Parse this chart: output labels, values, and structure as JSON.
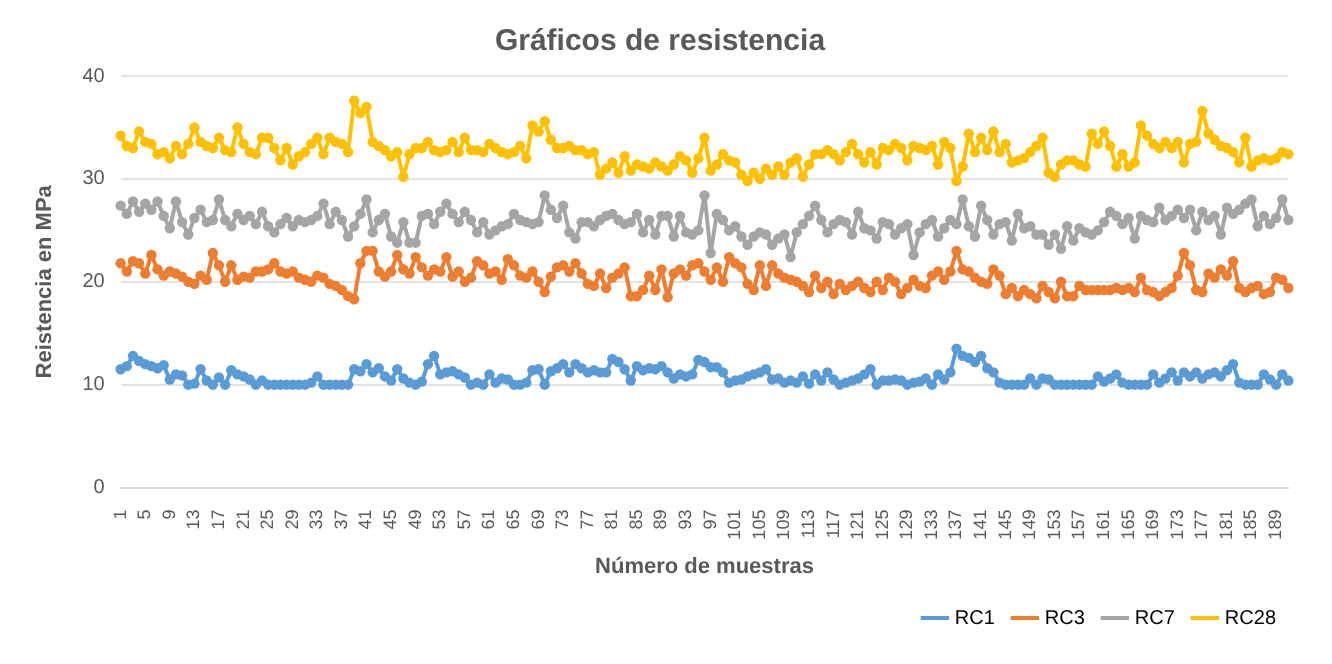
{
  "chart_data": {
    "type": "line",
    "title": "Gráficos de resistencia",
    "xlabel": "Número de muestras",
    "ylabel": "Reistencia en MPa",
    "categories": [
      "1",
      null,
      null,
      null,
      "5",
      null,
      null,
      null,
      "9",
      null,
      null,
      null,
      "13",
      null,
      null,
      null,
      "17",
      null,
      null,
      null,
      "21",
      null,
      null,
      null,
      "25",
      null,
      null,
      null,
      "29",
      null,
      null,
      null,
      "33",
      null,
      null,
      null,
      "37",
      null,
      null,
      null,
      "41",
      null,
      null,
      null,
      "45",
      null,
      null,
      null,
      "49",
      null,
      null,
      null,
      "53",
      null,
      null,
      null,
      "57",
      null,
      null,
      null,
      "61",
      null,
      null,
      null,
      "65",
      null,
      null,
      null,
      "69",
      null,
      null,
      null,
      "73",
      null,
      null,
      null,
      "77",
      null,
      null,
      null,
      "81",
      null,
      null,
      null,
      "85",
      null,
      null,
      null,
      "89",
      null,
      null,
      null,
      "93",
      null,
      null,
      null,
      "97",
      null,
      null,
      null,
      "101",
      null,
      null,
      null,
      "105",
      null,
      null,
      null,
      "109",
      null,
      null,
      null,
      "113",
      null,
      null,
      null,
      "117",
      null,
      null,
      null,
      "121",
      null,
      null,
      null,
      "125",
      null,
      null,
      null,
      "129",
      null,
      null,
      null,
      "133",
      null,
      null,
      null,
      "137",
      null,
      null,
      null,
      "141",
      null,
      null,
      null,
      "145",
      null,
      null,
      null,
      "149",
      null,
      null,
      null,
      "153",
      null,
      null,
      null,
      "157",
      null,
      null,
      null,
      "161",
      null,
      null,
      null,
      "165",
      null,
      null,
      null,
      "169",
      null,
      null,
      null,
      "173",
      null,
      null,
      null,
      "177",
      null,
      null,
      null,
      "181",
      null,
      null,
      null,
      "185",
      null,
      null,
      null,
      "189",
      null,
      null
    ],
    "series": [
      {
        "name": "RC1",
        "color": "#5b9bd5",
        "values": [
          11.5,
          11.8,
          12.8,
          12.3,
          12.0,
          11.8,
          11.6,
          11.9,
          10.5,
          11.0,
          10.9,
          10.0,
          10.1,
          11.5,
          10.4,
          10.0,
          10.7,
          10.0,
          11.4,
          11.0,
          10.8,
          10.5,
          10.0,
          10.4,
          10.0,
          10.0,
          10.0,
          10.0,
          10.0,
          10.0,
          10.0,
          10.2,
          10.8,
          10.0,
          10.0,
          10.0,
          10.0,
          10.0,
          11.5,
          11.3,
          12.0,
          11.2,
          11.6,
          10.8,
          10.4,
          11.5,
          10.6,
          10.2,
          10.0,
          10.3,
          12.0,
          12.8,
          11.0,
          11.2,
          11.3,
          11.0,
          10.7,
          10.0,
          10.2,
          10.0,
          11.0,
          10.2,
          10.6,
          10.5,
          10.0,
          10.0,
          10.2,
          11.4,
          11.5,
          10.0,
          11.3,
          11.6,
          12.0,
          11.2,
          12.0,
          11.6,
          11.2,
          11.4,
          11.2,
          11.2,
          12.5,
          12.2,
          11.5,
          10.4,
          11.8,
          11.4,
          11.6,
          11.5,
          11.8,
          11.2,
          10.6,
          11.0,
          10.8,
          11.0,
          12.4,
          12.2,
          11.7,
          11.7,
          11.2,
          10.2,
          10.4,
          10.5,
          10.8,
          11.0,
          11.2,
          11.5,
          10.5,
          10.6,
          10.2,
          10.4,
          10.2,
          10.8,
          10.1,
          11.0,
          10.4,
          11.2,
          10.5,
          10.0,
          10.2,
          10.4,
          10.6,
          11.0,
          11.5,
          10.0,
          10.4,
          10.4,
          10.5,
          10.4,
          10.0,
          10.2,
          10.3,
          10.6,
          10.0,
          11.0,
          10.5,
          11.2,
          13.5,
          12.8,
          12.6,
          12.2,
          12.8,
          11.6,
          11.2,
          10.2,
          10.0,
          10.0,
          10.0,
          10.0,
          10.6,
          10.0,
          10.6,
          10.5,
          10.0,
          10.0,
          10.0,
          10.0,
          10.0,
          10.0,
          10.0,
          10.8,
          10.3,
          10.6,
          11.0,
          10.2,
          10.0,
          10.0,
          10.0,
          10.0,
          11.0,
          10.2,
          10.6,
          11.2,
          10.4,
          11.2,
          10.8,
          11.2,
          10.6,
          11.0,
          11.2,
          10.8,
          11.4,
          12.0,
          10.2,
          10.0,
          10.0,
          10.0,
          11.0,
          10.5,
          10.0,
          11.0,
          10.4
        ]
      },
      {
        "name": "RC3",
        "color": "#ed7d31",
        "values": [
          21.8,
          21.0,
          22.0,
          21.8,
          20.8,
          22.6,
          21.2,
          20.6,
          21.0,
          20.8,
          20.5,
          20.0,
          19.8,
          20.6,
          20.2,
          22.8,
          21.6,
          20.0,
          21.6,
          20.2,
          20.5,
          20.4,
          21.0,
          21.0,
          21.2,
          21.8,
          21.0,
          20.8,
          21.0,
          20.4,
          20.2,
          20.0,
          20.6,
          20.4,
          19.8,
          19.6,
          19.2,
          18.6,
          18.3,
          21.8,
          23.0,
          23.0,
          21.0,
          20.5,
          21.0,
          22.6,
          21.2,
          20.8,
          22.4,
          21.4,
          20.6,
          21.2,
          21.0,
          22.4,
          20.5,
          21.0,
          20.0,
          20.4,
          22.0,
          21.6,
          20.8,
          21.0,
          20.2,
          22.2,
          21.6,
          20.6,
          20.4,
          21.0,
          20.0,
          19.0,
          20.5,
          21.4,
          21.6,
          21.0,
          21.8,
          20.8,
          19.8,
          19.6,
          20.8,
          19.4,
          20.4,
          20.8,
          21.4,
          18.6,
          18.6,
          19.2,
          20.6,
          19.2,
          21.2,
          18.5,
          20.8,
          21.2,
          20.6,
          21.6,
          21.8,
          21.0,
          20.2,
          21.4,
          20.0,
          22.4,
          21.8,
          21.4,
          19.8,
          19.2,
          21.6,
          19.6,
          21.6,
          20.8,
          20.4,
          20.2,
          20.0,
          19.6,
          19.0,
          20.6,
          19.4,
          20.0,
          18.8,
          19.8,
          19.2,
          19.6,
          20.0,
          19.4,
          19.0,
          20.0,
          19.2,
          20.4,
          20.0,
          18.8,
          19.4,
          20.2,
          19.6,
          19.4,
          20.6,
          21.0,
          20.2,
          21.0,
          23.0,
          21.2,
          21.0,
          20.4,
          20.0,
          19.8,
          21.2,
          20.6,
          18.8,
          19.4,
          18.6,
          19.2,
          18.8,
          18.4,
          19.6,
          19.0,
          18.4,
          20.0,
          18.6,
          18.6,
          19.6,
          19.2,
          19.2,
          19.2,
          19.2,
          19.2,
          19.4,
          19.2,
          19.4,
          19.0,
          20.4,
          19.2,
          19.0,
          18.6,
          19.0,
          19.4,
          20.6,
          22.8,
          21.6,
          19.2,
          19.0,
          20.8,
          20.4,
          21.2,
          20.6,
          22.0,
          19.4,
          19.0,
          19.4,
          19.6,
          18.8,
          19.0,
          20.4,
          20.2,
          19.4
        ]
      },
      {
        "name": "RC7",
        "color": "#a5a5a5",
        "values": [
          27.4,
          26.6,
          27.8,
          26.8,
          27.6,
          27.0,
          27.8,
          26.4,
          25.2,
          27.8,
          25.8,
          24.6,
          26.2,
          27.0,
          25.8,
          26.0,
          28.0,
          26.0,
          25.4,
          26.6,
          26.0,
          26.4,
          25.6,
          26.8,
          25.4,
          24.8,
          25.6,
          26.2,
          25.4,
          26.0,
          25.8,
          26.0,
          26.4,
          27.6,
          25.6,
          26.8,
          26.0,
          24.4,
          25.4,
          26.6,
          28.0,
          24.8,
          26.0,
          26.6,
          24.4,
          23.8,
          25.8,
          23.8,
          23.8,
          26.4,
          26.6,
          25.6,
          26.8,
          27.6,
          26.6,
          25.8,
          26.8,
          26.0,
          24.8,
          25.8,
          24.6,
          25.0,
          25.4,
          25.6,
          26.6,
          26.0,
          25.8,
          25.6,
          25.8,
          28.4,
          27.0,
          26.2,
          27.4,
          24.8,
          24.2,
          25.8,
          25.8,
          25.4,
          26.0,
          26.4,
          26.6,
          26.0,
          25.6,
          25.8,
          26.6,
          24.8,
          26.0,
          24.6,
          26.4,
          26.4,
          24.4,
          26.4,
          24.8,
          24.6,
          25.0,
          28.4,
          22.8,
          26.6,
          26.0,
          25.0,
          25.4,
          24.4,
          23.6,
          24.4,
          24.8,
          24.6,
          23.6,
          24.2,
          24.6,
          22.4,
          24.8,
          25.6,
          26.4,
          27.4,
          26.0,
          24.8,
          25.6,
          26.0,
          25.8,
          24.6,
          26.8,
          25.2,
          25.0,
          24.2,
          25.8,
          25.6,
          24.6,
          25.2,
          25.6,
          22.6,
          24.8,
          25.6,
          26.0,
          24.4,
          25.2,
          26.0,
          25.6,
          28.0,
          25.4,
          24.4,
          27.4,
          26.0,
          24.6,
          25.6,
          25.8,
          24.0,
          26.6,
          25.2,
          25.4,
          24.6,
          24.6,
          23.6,
          24.6,
          23.2,
          25.4,
          24.0,
          25.2,
          24.8,
          24.6,
          25.0,
          25.8,
          26.8,
          26.4,
          25.6,
          26.2,
          24.2,
          26.4,
          26.0,
          25.8,
          27.2,
          26.0,
          26.4,
          27.0,
          26.2,
          27.0,
          25.0,
          26.8,
          26.0,
          26.4,
          24.6,
          27.2,
          26.6,
          27.0,
          27.6,
          28.0,
          25.4,
          26.4,
          25.6,
          26.2,
          28.0,
          26.0
        ]
      },
      {
        "name": "RC28",
        "color": "#ffc000",
        "values": [
          34.2,
          33.2,
          33.0,
          34.6,
          33.6,
          33.4,
          32.4,
          32.6,
          32.0,
          33.2,
          32.4,
          33.4,
          35.0,
          33.6,
          33.2,
          33.0,
          34.0,
          32.8,
          32.6,
          35.0,
          33.4,
          32.6,
          32.4,
          34.0,
          34.0,
          33.0,
          31.8,
          33.0,
          31.4,
          32.2,
          32.6,
          33.4,
          34.0,
          32.4,
          34.0,
          33.6,
          33.4,
          32.6,
          37.6,
          36.4,
          37.0,
          33.6,
          33.2,
          32.8,
          32.2,
          32.6,
          30.2,
          32.4,
          33.0,
          33.0,
          33.6,
          32.8,
          32.6,
          32.8,
          33.6,
          32.6,
          34.0,
          32.8,
          32.8,
          32.6,
          33.4,
          33.0,
          32.6,
          32.4,
          32.6,
          33.2,
          32.0,
          35.2,
          34.6,
          35.6,
          33.8,
          33.0,
          33.0,
          33.2,
          32.8,
          32.8,
          32.4,
          32.6,
          30.4,
          31.0,
          31.6,
          30.6,
          32.2,
          30.8,
          31.4,
          31.2,
          31.0,
          31.6,
          31.2,
          30.8,
          31.4,
          32.2,
          31.8,
          30.6,
          32.0,
          34.0,
          30.8,
          31.4,
          32.4,
          31.8,
          31.6,
          30.4,
          29.8,
          30.6,
          30.0,
          31.0,
          30.4,
          31.2,
          30.4,
          31.6,
          32.0,
          30.2,
          31.4,
          32.4,
          32.4,
          32.8,
          32.4,
          31.8,
          32.6,
          33.4,
          32.4,
          31.6,
          32.6,
          31.4,
          33.0,
          32.8,
          33.4,
          33.0,
          31.8,
          33.2,
          33.0,
          32.8,
          33.2,
          31.4,
          33.6,
          33.0,
          29.8,
          31.2,
          34.4,
          32.6,
          34.0,
          32.8,
          34.6,
          32.6,
          33.4,
          31.6,
          31.8,
          32.0,
          32.6,
          33.2,
          34.0,
          30.6,
          30.2,
          31.4,
          31.8,
          31.8,
          31.4,
          31.2,
          34.4,
          33.4,
          34.6,
          33.2,
          31.2,
          32.4,
          31.2,
          31.6,
          35.2,
          34.2,
          33.4,
          33.0,
          33.6,
          33.0,
          33.6,
          31.6,
          33.4,
          33.6,
          36.6,
          34.4,
          33.8,
          33.2,
          33.0,
          32.6,
          31.6,
          34.0,
          31.2,
          31.8,
          32.0,
          31.8,
          32.0,
          32.6,
          32.4
        ]
      }
    ],
    "ylim": [
      0,
      40
    ],
    "yticks": [
      0,
      10,
      20,
      30,
      40
    ],
    "grid": "y",
    "legend": "bottom right",
    "marker": "circle",
    "line_style": "solid"
  }
}
